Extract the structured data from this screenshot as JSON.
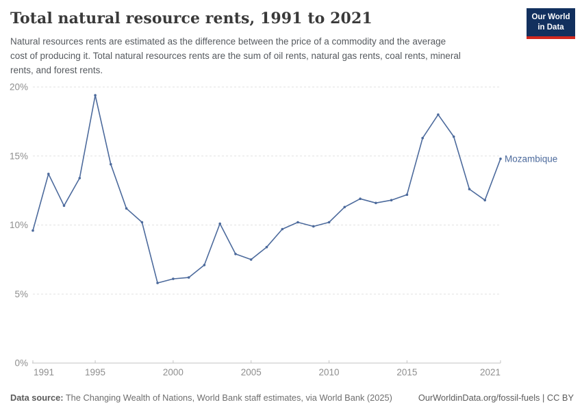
{
  "header": {
    "title": "Total natural resource rents, 1991 to 2021",
    "subtitle_lines": [
      "Natural resources rents are estimated as the difference between the price of a commodity and the average",
      "cost of producing it. Total natural resources rents are the sum of oil rents, natural gas rents, coal rents, mineral",
      "rents, and forest rents."
    ],
    "logo": {
      "line1": "Our World",
      "line2": "in Data"
    }
  },
  "chart_data": {
    "type": "line",
    "title": "Total natural resource rents, 1991 to 2021",
    "xlabel": "",
    "ylabel": "",
    "xlim": [
      1991,
      2021
    ],
    "ylim": [
      0,
      20
    ],
    "grid": "horizontal-dashed",
    "legend": "end-of-line-label",
    "x_ticks": [
      1991,
      1995,
      2000,
      2005,
      2010,
      2015,
      2021
    ],
    "y_ticks": [
      0,
      5,
      10,
      15,
      20
    ],
    "y_tick_suffix": "%",
    "series": [
      {
        "name": "Mozambique",
        "color": "#4C6A9C",
        "x": [
          1991,
          1992,
          1993,
          1994,
          1995,
          1996,
          1997,
          1998,
          1999,
          2000,
          2001,
          2002,
          2003,
          2004,
          2005,
          2006,
          2007,
          2008,
          2009,
          2010,
          2011,
          2012,
          2013,
          2014,
          2015,
          2016,
          2017,
          2018,
          2019,
          2020,
          2021
        ],
        "values": [
          9.6,
          13.7,
          11.4,
          13.4,
          19.4,
          14.4,
          11.2,
          10.2,
          5.8,
          6.1,
          6.2,
          7.1,
          10.1,
          7.9,
          7.5,
          8.4,
          9.7,
          10.2,
          9.9,
          10.2,
          11.3,
          11.9,
          11.6,
          11.8,
          12.2,
          16.3,
          18.0,
          16.4,
          12.6,
          11.8,
          14.8
        ]
      }
    ]
  },
  "footer": {
    "datasource_label": "Data source:",
    "datasource_text": " The Changing Wealth of Nations, World Bank staff estimates, via World Bank (2025)",
    "url": "OurWorldinData.org/fossil-fuels",
    "separator": " | ",
    "license": "CC BY"
  },
  "colors": {
    "line": "#4C6A9C",
    "gridline": "#e2e2e2",
    "axis": "#c3c3c3",
    "tick_label": "#8e8e8e",
    "title": "#3a3a3a",
    "subtitle": "#55595e",
    "logo_bg": "#12305E",
    "logo_red": "#D2281E"
  }
}
